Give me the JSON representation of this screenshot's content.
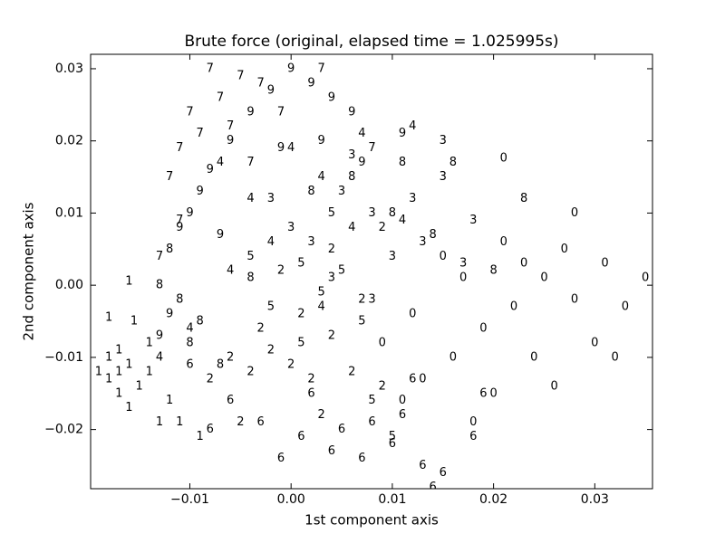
{
  "chart_data": {
    "type": "scatter",
    "title": "Brute force (original, elapsed time  = 1.025995s)",
    "xlabel": "1st component axis",
    "ylabel": "2nd component axis",
    "xlim": [
      -0.0198,
      0.0357
    ],
    "ylim": [
      -0.0282,
      0.032
    ],
    "xticks": [
      {
        "value": -0.01,
        "label": "−0.01"
      },
      {
        "value": 0,
        "label": "0.00"
      },
      0.01,
      0.02,
      0.03
    ],
    "yticks": [
      {
        "value": -0.02,
        "label": "−0.02"
      },
      {
        "value": -0.01,
        "label": "−0.01"
      },
      {
        "value": 0,
        "label": "0.00"
      },
      0.01,
      0.02,
      0.03
    ],
    "series": [
      {
        "name": "0",
        "color": "#8000ff",
        "x": [
          0.022,
          0.025,
          0.019,
          0.028,
          0.031,
          0.016,
          0.013,
          0.02,
          0.024,
          0.03,
          0.033,
          0.035,
          0.027,
          0.021,
          0.017,
          0.012,
          0.009,
          0.018,
          0.021,
          0.028,
          0.015,
          0.026,
          0.032,
          0.011,
          0.023
        ],
        "y": [
          -0.003,
          0.001,
          -0.006,
          -0.002,
          0.003,
          -0.01,
          -0.013,
          -0.015,
          -0.01,
          -0.008,
          -0.003,
          0.001,
          0.005,
          0.006,
          0.001,
          -0.004,
          -0.008,
          -0.019,
          0.0176,
          0.01,
          0.004,
          -0.014,
          -0.01,
          -0.016,
          0.003
        ]
      },
      {
        "name": "1",
        "color": "#4658f8",
        "x": [
          -0.017,
          -0.018,
          -0.016,
          -0.017,
          -0.019,
          -0.015,
          -0.016,
          -0.018,
          -0.014,
          -0.013,
          -0.011,
          -0.009,
          -0.0155,
          -0.018,
          -0.014,
          -0.016,
          -0.012,
          -0.017
        ],
        "y": [
          -0.012,
          -0.013,
          -0.011,
          -0.015,
          -0.012,
          -0.014,
          -0.017,
          -0.01,
          -0.012,
          -0.019,
          -0.019,
          -0.021,
          -0.005,
          -0.0045,
          -0.008,
          0.0005,
          -0.016,
          -0.009
        ]
      },
      {
        "name": "2",
        "color": "#1996f3",
        "x": [
          -0.004,
          -0.002,
          0.0,
          0.002,
          -0.006,
          -0.003,
          0.001,
          0.004,
          0.006,
          0.009,
          -0.005,
          0.003,
          -0.001,
          0.004,
          0.009,
          -0.008,
          0.007
        ],
        "y": [
          -0.012,
          -0.009,
          -0.011,
          -0.013,
          -0.01,
          -0.006,
          -0.004,
          -0.007,
          -0.012,
          -0.014,
          -0.019,
          -0.018,
          0.002,
          0.005,
          0.008,
          -0.013,
          -0.002
        ]
      },
      {
        "name": "3",
        "color": "#2adddd",
        "x": [
          0.005,
          0.008,
          0.012,
          0.015,
          0.015,
          0.018,
          0.002,
          0.01,
          0.006,
          0.0,
          0.013,
          0.004,
          0.017,
          0.008,
          -0.002
        ],
        "y": [
          0.013,
          0.01,
          0.012,
          0.02,
          0.015,
          0.009,
          0.006,
          0.004,
          0.018,
          0.008,
          0.006,
          0.001,
          0.003,
          -0.002,
          0.012
        ]
      },
      {
        "name": "4",
        "color": "#7ffcb8",
        "x": [
          0.012,
          0.007,
          0.003,
          -0.004,
          0.0,
          -0.002,
          0.006,
          -0.006,
          -0.01,
          -0.013,
          0.011,
          0.003,
          -0.007
        ],
        "y": [
          0.022,
          0.021,
          0.015,
          0.012,
          0.019,
          0.006,
          0.008,
          0.002,
          -0.006,
          -0.01,
          0.009,
          -0.003,
          0.017
        ]
      },
      {
        "name": "5",
        "color": "#b2f296",
        "x": [
          0.001,
          0.003,
          -0.002,
          0.005,
          -0.004,
          0.007,
          0.001,
          0.01,
          0.008,
          0.004
        ],
        "y": [
          0.003,
          -0.001,
          -0.003,
          0.002,
          0.004,
          -0.005,
          -0.008,
          -0.021,
          -0.016,
          0.01
        ]
      },
      {
        "name": "6",
        "color": "#d4dd80",
        "x": [
          -0.01,
          -0.006,
          -0.003,
          0.001,
          0.004,
          0.007,
          0.01,
          0.013,
          0.015,
          0.014,
          0.011,
          0.002,
          -0.001,
          0.008,
          0.018,
          0.019,
          -0.008,
          0.005,
          0.012
        ],
        "y": [
          -0.011,
          -0.016,
          -0.019,
          -0.021,
          -0.023,
          -0.024,
          -0.022,
          -0.025,
          -0.026,
          -0.028,
          -0.018,
          -0.015,
          -0.024,
          -0.019,
          -0.021,
          -0.015,
          -0.02,
          -0.02,
          -0.013
        ]
      },
      {
        "name": "7",
        "color": "#ffa256",
        "x": [
          -0.008,
          -0.005,
          -0.01,
          -0.011,
          -0.012,
          -0.007,
          -0.003,
          -0.009,
          -0.011,
          -0.013,
          -0.006,
          -0.001,
          0.003,
          0.008,
          -0.004
        ],
        "y": [
          0.03,
          0.029,
          0.024,
          0.019,
          0.015,
          0.026,
          0.028,
          0.021,
          0.009,
          0.004,
          0.022,
          0.024,
          0.03,
          0.019,
          0.017
        ]
      },
      {
        "name": "8",
        "color": "#f25c2c",
        "x": [
          -0.012,
          -0.011,
          -0.009,
          -0.013,
          -0.007,
          0.006,
          0.011,
          0.016,
          0.023,
          0.01,
          0.002,
          -0.004,
          0.014,
          -0.01,
          0.02
        ],
        "y": [
          0.005,
          -0.002,
          -0.005,
          0.0,
          -0.011,
          0.015,
          0.017,
          0.017,
          0.012,
          0.01,
          0.013,
          0.001,
          0.007,
          -0.008,
          0.002
        ]
      },
      {
        "name": "9",
        "color": "#ff0000",
        "x": [
          -0.009,
          -0.01,
          -0.008,
          -0.006,
          -0.004,
          -0.002,
          0.0,
          0.002,
          0.004,
          0.006,
          0.003,
          -0.001,
          -0.011,
          -0.007,
          0.011,
          0.007,
          -0.012,
          -0.013
        ],
        "y": [
          0.013,
          0.01,
          0.016,
          0.02,
          0.024,
          0.027,
          0.03,
          0.028,
          0.026,
          0.024,
          0.02,
          0.019,
          0.008,
          0.007,
          0.021,
          0.017,
          -0.004,
          -0.007
        ]
      }
    ]
  }
}
